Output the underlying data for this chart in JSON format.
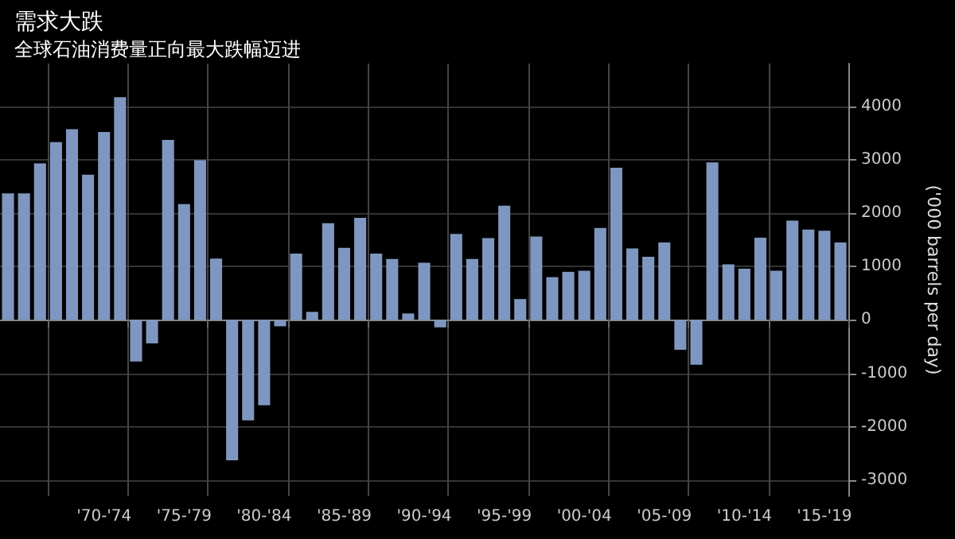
{
  "chart_data": {
    "type": "bar",
    "title": "需求大跌",
    "subtitle": "全球石油消费量正向最大跌幅迈进",
    "ylabel": "('000 barrels per day)",
    "categories": [
      null,
      null,
      null,
      null,
      null,
      null,
      "'70-'74",
      null,
      null,
      null,
      null,
      "'75-'79",
      null,
      null,
      null,
      null,
      "'80-'84",
      null,
      null,
      null,
      null,
      "'85-'89",
      null,
      null,
      null,
      null,
      "'90-'94",
      null,
      null,
      null,
      null,
      "'95-'99",
      null,
      null,
      null,
      null,
      "'00-'04",
      null,
      null,
      null,
      null,
      "'05-'09",
      null,
      null,
      null,
      null,
      "'10-'14",
      null,
      null,
      null,
      null,
      "'15-'19",
      null
    ],
    "values": [
      2370,
      2370,
      2930,
      3330,
      3570,
      2720,
      3520,
      4170,
      -780,
      -440,
      3370,
      2170,
      2990,
      1150,
      -2630,
      -1880,
      -1600,
      -120,
      1240,
      150,
      1810,
      1350,
      1910,
      1240,
      1140,
      120,
      1070,
      -140,
      1610,
      1140,
      1530,
      2140,
      390,
      1560,
      800,
      900,
      920,
      1720,
      2850,
      1340,
      1180,
      1450,
      -560,
      -840,
      2950,
      1040,
      960,
      1540,
      920,
      1860,
      1690,
      1670,
      1450
    ],
    "color": "#7f97c0",
    "ylim": [
      -3300,
      4800
    ],
    "yticks": [
      -3000,
      -2000,
      -1000,
      0,
      1000,
      2000,
      3000,
      4000
    ],
    "grid": true
  }
}
